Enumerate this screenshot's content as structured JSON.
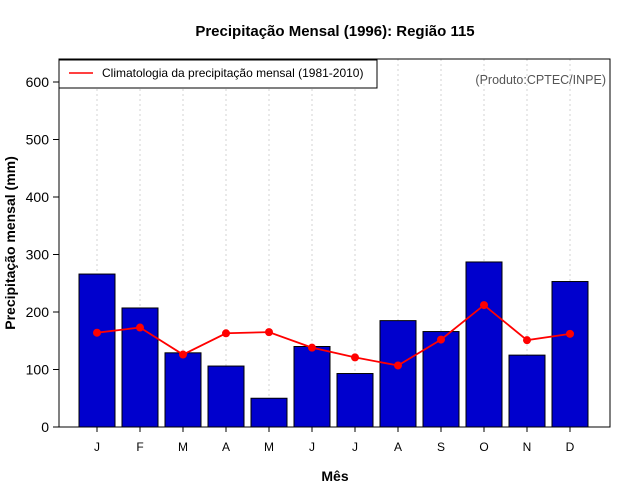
{
  "chart_data": {
    "type": "bar",
    "title": "Precipitação Mensal (1996): Região 115",
    "xlabel": "Mês",
    "ylabel": "Precipitação mensal (mm)",
    "ylim": [
      0,
      640
    ],
    "yticks": [
      0,
      100,
      200,
      300,
      400,
      500,
      600
    ],
    "grid": true,
    "categories": [
      "J",
      "F",
      "M",
      "A",
      "M",
      "J",
      "J",
      "A",
      "S",
      "O",
      "N",
      "D"
    ],
    "series": [
      {
        "name": "Precipitação mensal (1996)",
        "type": "bar",
        "color": "#0000cd",
        "values": [
          266,
          207,
          129,
          106,
          50,
          140,
          93,
          185,
          166,
          287,
          125,
          253
        ]
      },
      {
        "name": "Climatologia da precipitação mensal (1981-2010)",
        "type": "line",
        "color": "#ff0000",
        "values": [
          164,
          173,
          126,
          163,
          165,
          138,
          121,
          107,
          152,
          212,
          151,
          162
        ]
      }
    ],
    "legend": {
      "position": "top-left",
      "label": "Climatologia da precipitação mensal (1981-2010)"
    },
    "source_note": "(Produto:CPTEC/INPE)"
  }
}
